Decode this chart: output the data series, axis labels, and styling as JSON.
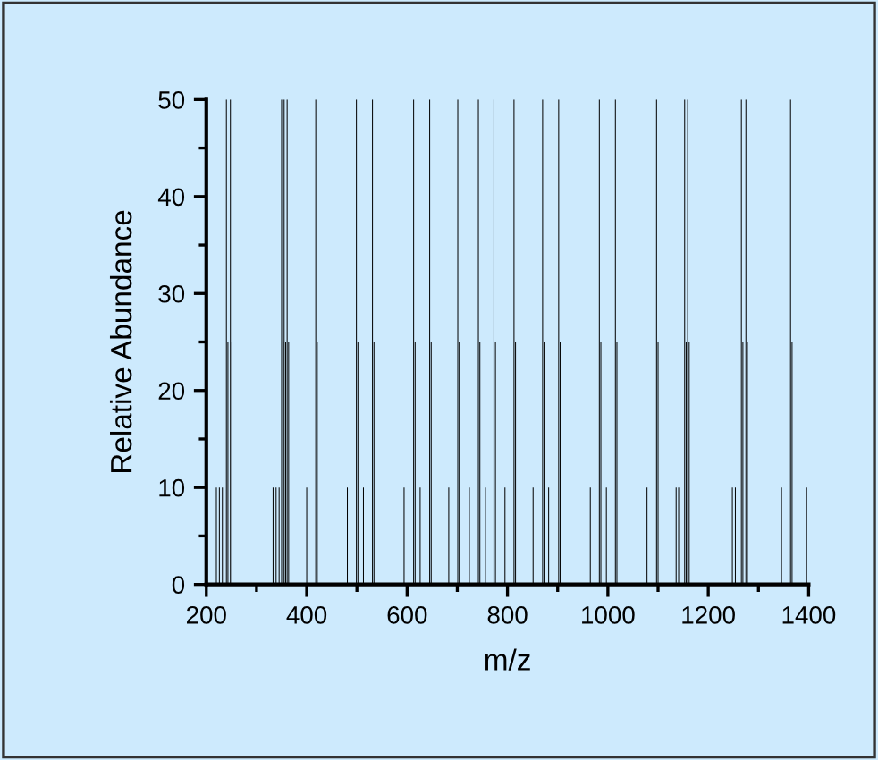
{
  "chart_data": {
    "type": "bar",
    "xlabel": "m/z",
    "ylabel": "Relative Abundance",
    "x": [
      220,
      226,
      232,
      240,
      243,
      248,
      251,
      333,
      339,
      345,
      350,
      353,
      355,
      358,
      361,
      364,
      400,
      418,
      421,
      481,
      499,
      502,
      513,
      531,
      534,
      594,
      613,
      616,
      626,
      645,
      648,
      683,
      701,
      704,
      724,
      742,
      745,
      756,
      773,
      776,
      795,
      813,
      816,
      851,
      870,
      873,
      882,
      902,
      905,
      965,
      983,
      986,
      997,
      1015,
      1018,
      1078,
      1097,
      1100,
      1136,
      1141,
      1153,
      1156,
      1159,
      1162,
      1248,
      1254,
      1266,
      1269,
      1275,
      1278,
      1346,
      1364,
      1367,
      1396
    ],
    "values": [
      10,
      10,
      10,
      50,
      25,
      50,
      25,
      10,
      10,
      10,
      50,
      25,
      50,
      25,
      50,
      25,
      10,
      50,
      25,
      10,
      50,
      25,
      10,
      50,
      25,
      10,
      50,
      25,
      10,
      50,
      25,
      10,
      50,
      25,
      10,
      50,
      25,
      10,
      50,
      25,
      10,
      50,
      25,
      10,
      50,
      25,
      10,
      50,
      25,
      10,
      50,
      25,
      10,
      50,
      25,
      10,
      50,
      25,
      10,
      10,
      50,
      25,
      50,
      25,
      10,
      10,
      50,
      25,
      50,
      25,
      10,
      50,
      25,
      10
    ],
    "color": "#000000",
    "xlim": [
      200,
      1400
    ],
    "xticks": [
      200,
      400,
      600,
      800,
      1000,
      1200,
      1400
    ],
    "ylim": [
      0,
      50
    ],
    "yticks": [
      0,
      10,
      20,
      30,
      40,
      50
    ],
    "grid": false,
    "legend": false
  }
}
